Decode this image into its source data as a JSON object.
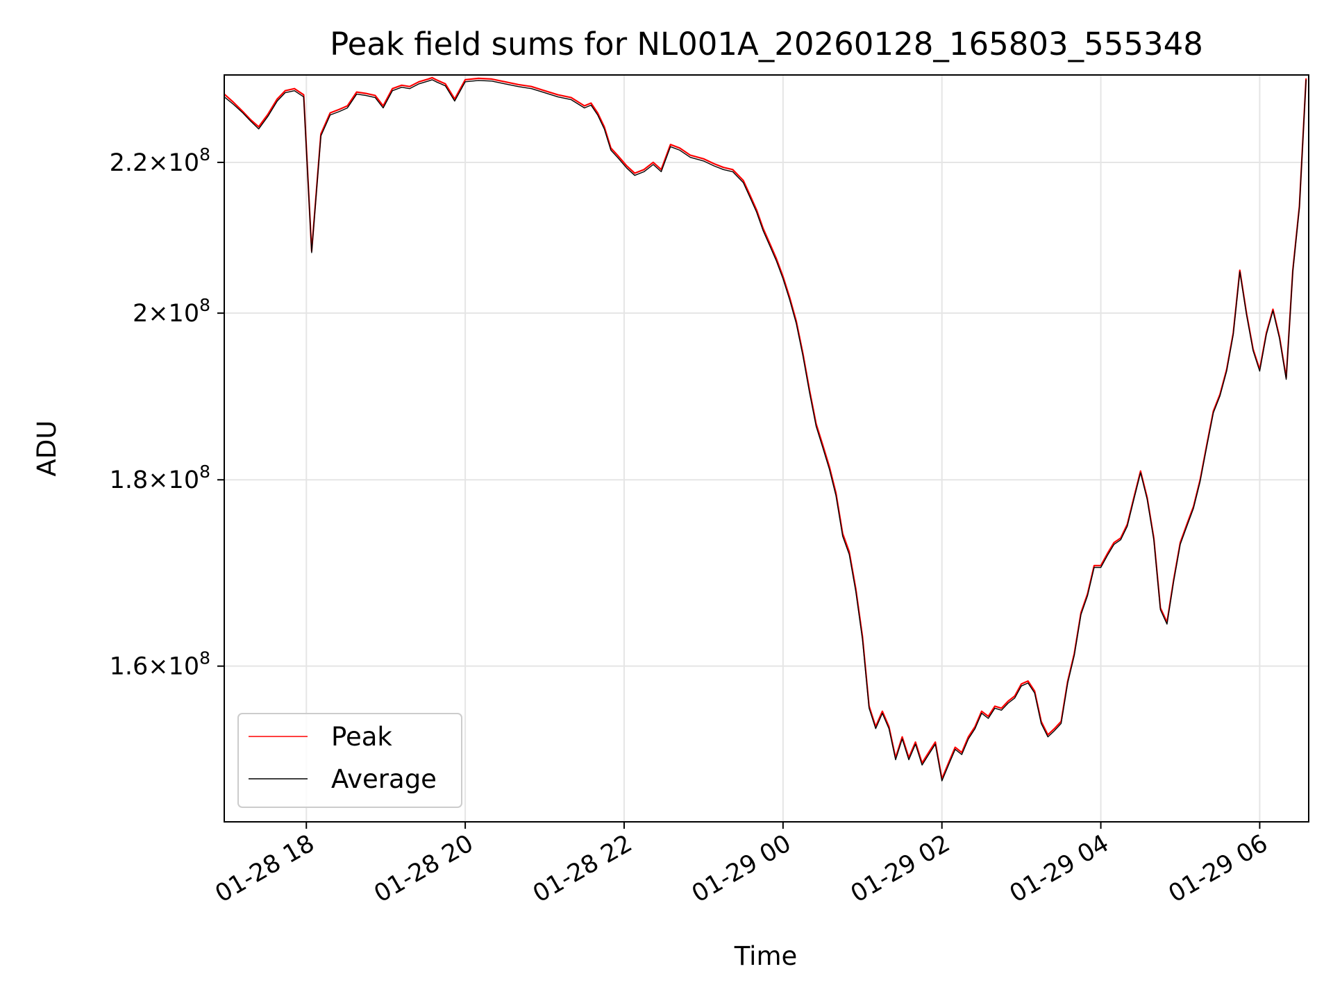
{
  "chart_data": {
    "type": "line",
    "title": "Peak field sums for NL001A_20260128_165803_555348",
    "xlabel": "Time",
    "ylabel": "ADU",
    "y_scale": "log",
    "grid": true,
    "legend_position": "lower-left",
    "xlim": [
      "2026-01-28 16:58",
      "2026-01-29 06:37"
    ],
    "ylim": [
      145000000,
      232500000
    ],
    "x_ticks": [
      {
        "value": "2026-01-28 18:00",
        "label": "01-28 18"
      },
      {
        "value": "2026-01-28 20:00",
        "label": "01-28 20"
      },
      {
        "value": "2026-01-28 22:00",
        "label": "01-28 22"
      },
      {
        "value": "2026-01-29 00:00",
        "label": "01-29 00"
      },
      {
        "value": "2026-01-29 02:00",
        "label": "01-29 02"
      },
      {
        "value": "2026-01-29 04:00",
        "label": "01-29 04"
      },
      {
        "value": "2026-01-29 06:00",
        "label": "01-29 06"
      }
    ],
    "y_ticks": [
      {
        "value": 160000000,
        "mantissa": "1.6",
        "exponent": "8"
      },
      {
        "value": 180000000,
        "mantissa": "1.8",
        "exponent": "8"
      },
      {
        "value": 200000000,
        "mantissa": "2",
        "exponent": "8"
      },
      {
        "value": 220000000,
        "mantissa": "2.2",
        "exponent": "8"
      }
    ],
    "x": [
      "2026-01-28 16:58",
      "2026-01-28 17:05",
      "2026-01-28 17:12",
      "2026-01-28 17:18",
      "2026-01-28 17:24",
      "2026-01-28 17:31",
      "2026-01-28 17:38",
      "2026-01-28 17:44",
      "2026-01-28 17:51",
      "2026-01-28 17:58",
      "2026-01-28 18:04",
      "2026-01-28 18:11",
      "2026-01-28 18:18",
      "2026-01-28 18:25",
      "2026-01-28 18:31",
      "2026-01-28 18:38",
      "2026-01-28 18:45",
      "2026-01-28 18:52",
      "2026-01-28 18:58",
      "2026-01-28 19:05",
      "2026-01-28 19:12",
      "2026-01-28 19:18",
      "2026-01-28 19:25",
      "2026-01-28 19:32",
      "2026-01-28 19:35",
      "2026-01-28 19:38",
      "2026-01-28 19:45",
      "2026-01-28 19:52",
      "2026-01-28 20:00",
      "2026-01-28 20:10",
      "2026-01-28 20:20",
      "2026-01-28 20:30",
      "2026-01-28 20:40",
      "2026-01-28 20:50",
      "2026-01-28 21:00",
      "2026-01-28 21:10",
      "2026-01-28 21:20",
      "2026-01-28 21:30",
      "2026-01-28 21:35",
      "2026-01-28 21:40",
      "2026-01-28 21:45",
      "2026-01-28 21:50",
      "2026-01-28 21:55",
      "2026-01-28 22:02",
      "2026-01-28 22:08",
      "2026-01-28 22:15",
      "2026-01-28 22:22",
      "2026-01-28 22:28",
      "2026-01-28 22:35",
      "2026-01-28 22:42",
      "2026-01-28 22:50",
      "2026-01-28 23:00",
      "2026-01-28 23:08",
      "2026-01-28 23:15",
      "2026-01-28 23:22",
      "2026-01-28 23:30",
      "2026-01-28 23:35",
      "2026-01-28 23:40",
      "2026-01-28 23:45",
      "2026-01-28 23:50",
      "2026-01-28 23:55",
      "2026-01-29 00:00",
      "2026-01-29 00:05",
      "2026-01-29 00:10",
      "2026-01-29 00:15",
      "2026-01-29 00:20",
      "2026-01-29 00:25",
      "2026-01-29 00:30",
      "2026-01-29 00:35",
      "2026-01-29 00:40",
      "2026-01-29 00:45",
      "2026-01-29 00:50",
      "2026-01-29 00:55",
      "2026-01-29 01:00",
      "2026-01-29 01:05",
      "2026-01-29 01:10",
      "2026-01-29 01:15",
      "2026-01-29 01:20",
      "2026-01-29 01:25",
      "2026-01-29 01:30",
      "2026-01-29 01:35",
      "2026-01-29 01:40",
      "2026-01-29 01:45",
      "2026-01-29 01:50",
      "2026-01-29 01:55",
      "2026-01-29 02:00",
      "2026-01-29 02:05",
      "2026-01-29 02:10",
      "2026-01-29 02:15",
      "2026-01-29 02:20",
      "2026-01-29 02:25",
      "2026-01-29 02:30",
      "2026-01-29 02:35",
      "2026-01-29 02:40",
      "2026-01-29 02:45",
      "2026-01-29 02:50",
      "2026-01-29 02:55",
      "2026-01-29 03:00",
      "2026-01-29 03:05",
      "2026-01-29 03:10",
      "2026-01-29 03:15",
      "2026-01-29 03:20",
      "2026-01-29 03:25",
      "2026-01-29 03:30",
      "2026-01-29 03:35",
      "2026-01-29 03:40",
      "2026-01-29 03:45",
      "2026-01-29 03:50",
      "2026-01-29 03:55",
      "2026-01-29 04:00",
      "2026-01-29 04:05",
      "2026-01-29 04:10",
      "2026-01-29 04:15",
      "2026-01-29 04:20",
      "2026-01-29 04:25",
      "2026-01-29 04:30",
      "2026-01-29 04:35",
      "2026-01-29 04:40",
      "2026-01-29 04:45",
      "2026-01-29 04:50",
      "2026-01-29 04:55",
      "2026-01-29 05:00",
      "2026-01-29 05:05",
      "2026-01-29 05:10",
      "2026-01-29 05:15",
      "2026-01-29 05:20",
      "2026-01-29 05:25",
      "2026-01-29 05:30",
      "2026-01-29 05:35",
      "2026-01-29 05:40",
      "2026-01-29 05:45",
      "2026-01-29 05:50",
      "2026-01-29 05:55",
      "2026-01-29 06:00",
      "2026-01-29 06:05",
      "2026-01-29 06:10",
      "2026-01-29 06:15",
      "2026-01-29 06:20",
      "2026-01-29 06:25",
      "2026-01-29 06:30",
      "2026-01-29 06:35"
    ],
    "series": [
      {
        "name": "Peak",
        "color": "#ff0000",
        "values": [
          229700000,
          228500000,
          227200000,
          226000000,
          225000000,
          226800000,
          229000000,
          230200000,
          230500000,
          229600000,
          208000000,
          224000000,
          227000000,
          227500000,
          228000000,
          230000000,
          229800000,
          229500000,
          228000000,
          230500000,
          231000000,
          230800000,
          231500000,
          231900000,
          232100000,
          231800000,
          231200000,
          229000000,
          231800000,
          232000000,
          231900000,
          231500000,
          231100000,
          230800000,
          230200000,
          229600000,
          229200000,
          228000000,
          228400000,
          227000000,
          225000000,
          222000000,
          221000000,
          219500000,
          218500000,
          219000000,
          220000000,
          219000000,
          222500000,
          222000000,
          221000000,
          220500000,
          219800000,
          219300000,
          219000000,
          217500000,
          215500000,
          213500000,
          211000000,
          209000000,
          207000000,
          204700000,
          202000000,
          199000000,
          195000000,
          190500000,
          186500000,
          184000000,
          181500000,
          178500000,
          174000000,
          172000000,
          168000000,
          163000000,
          156000000,
          154000000,
          155500000,
          154000000,
          151000000,
          153000000,
          151000000,
          152500000,
          150500000,
          151500000,
          152500000,
          149000000,
          150500000,
          152000000,
          151500000,
          153000000,
          154000000,
          155500000,
          155000000,
          156000000,
          155800000,
          156500000,
          157000000,
          158200000,
          158500000,
          157500000,
          154500000,
          153200000,
          153800000,
          154500000,
          158500000,
          161300000,
          165500000,
          167500000,
          170500000,
          170500000,
          171800000,
          173000000,
          173500000,
          175000000,
          178000000,
          181000000,
          178000000,
          173500000,
          166000000,
          164500000,
          169000000,
          173000000,
          175000000,
          177000000,
          180000000,
          184000000,
          188000000,
          190000000,
          193000000,
          197500000,
          205500000,
          200000000,
          195500000,
          193000000,
          197500000,
          200500000,
          197000000,
          192000000,
          205500000,
          214000000,
          232000000
        ]
      },
      {
        "name": "Average",
        "color": "#000000",
        "values": [
          229300000,
          228200000,
          227000000,
          225800000,
          224700000,
          226500000,
          228700000,
          229900000,
          230200000,
          229300000,
          207800000,
          223700000,
          226700000,
          227200000,
          227700000,
          229700000,
          229500000,
          229200000,
          227700000,
          230200000,
          230700000,
          230500000,
          231200000,
          231600000,
          231800000,
          231500000,
          230900000,
          228700000,
          231500000,
          231700000,
          231600000,
          231200000,
          230800000,
          230500000,
          229900000,
          229300000,
          228900000,
          227700000,
          228100000,
          226700000,
          224700000,
          221700000,
          220700000,
          219200000,
          218200000,
          218700000,
          219700000,
          218700000,
          222200000,
          221700000,
          220700000,
          220200000,
          219500000,
          219000000,
          218700000,
          217200000,
          215200000,
          213200000,
          210700000,
          208700000,
          206700000,
          204400000,
          201700000,
          198700000,
          194700000,
          190200000,
          186200000,
          183700000,
          181200000,
          178200000,
          173700000,
          171700000,
          167700000,
          162700000,
          155800000,
          153800000,
          155300000,
          153800000,
          150800000,
          152800000,
          150800000,
          152300000,
          150300000,
          151300000,
          152300000,
          148800000,
          150300000,
          151800000,
          151300000,
          152800000,
          153800000,
          155300000,
          154800000,
          155800000,
          155600000,
          156300000,
          156800000,
          158000000,
          158300000,
          157300000,
          154300000,
          153000000,
          153600000,
          154300000,
          158300000,
          161100000,
          165300000,
          167300000,
          170300000,
          170300000,
          171600000,
          172800000,
          173300000,
          174800000,
          177800000,
          180800000,
          177800000,
          173300000,
          165800000,
          164300000,
          168800000,
          172800000,
          174800000,
          176800000,
          179800000,
          183800000,
          187800000,
          189800000,
          192800000,
          197300000,
          205300000,
          199800000,
          195300000,
          192800000,
          197300000,
          200300000,
          196800000,
          191800000,
          205300000,
          213800000,
          231800000
        ]
      }
    ]
  }
}
